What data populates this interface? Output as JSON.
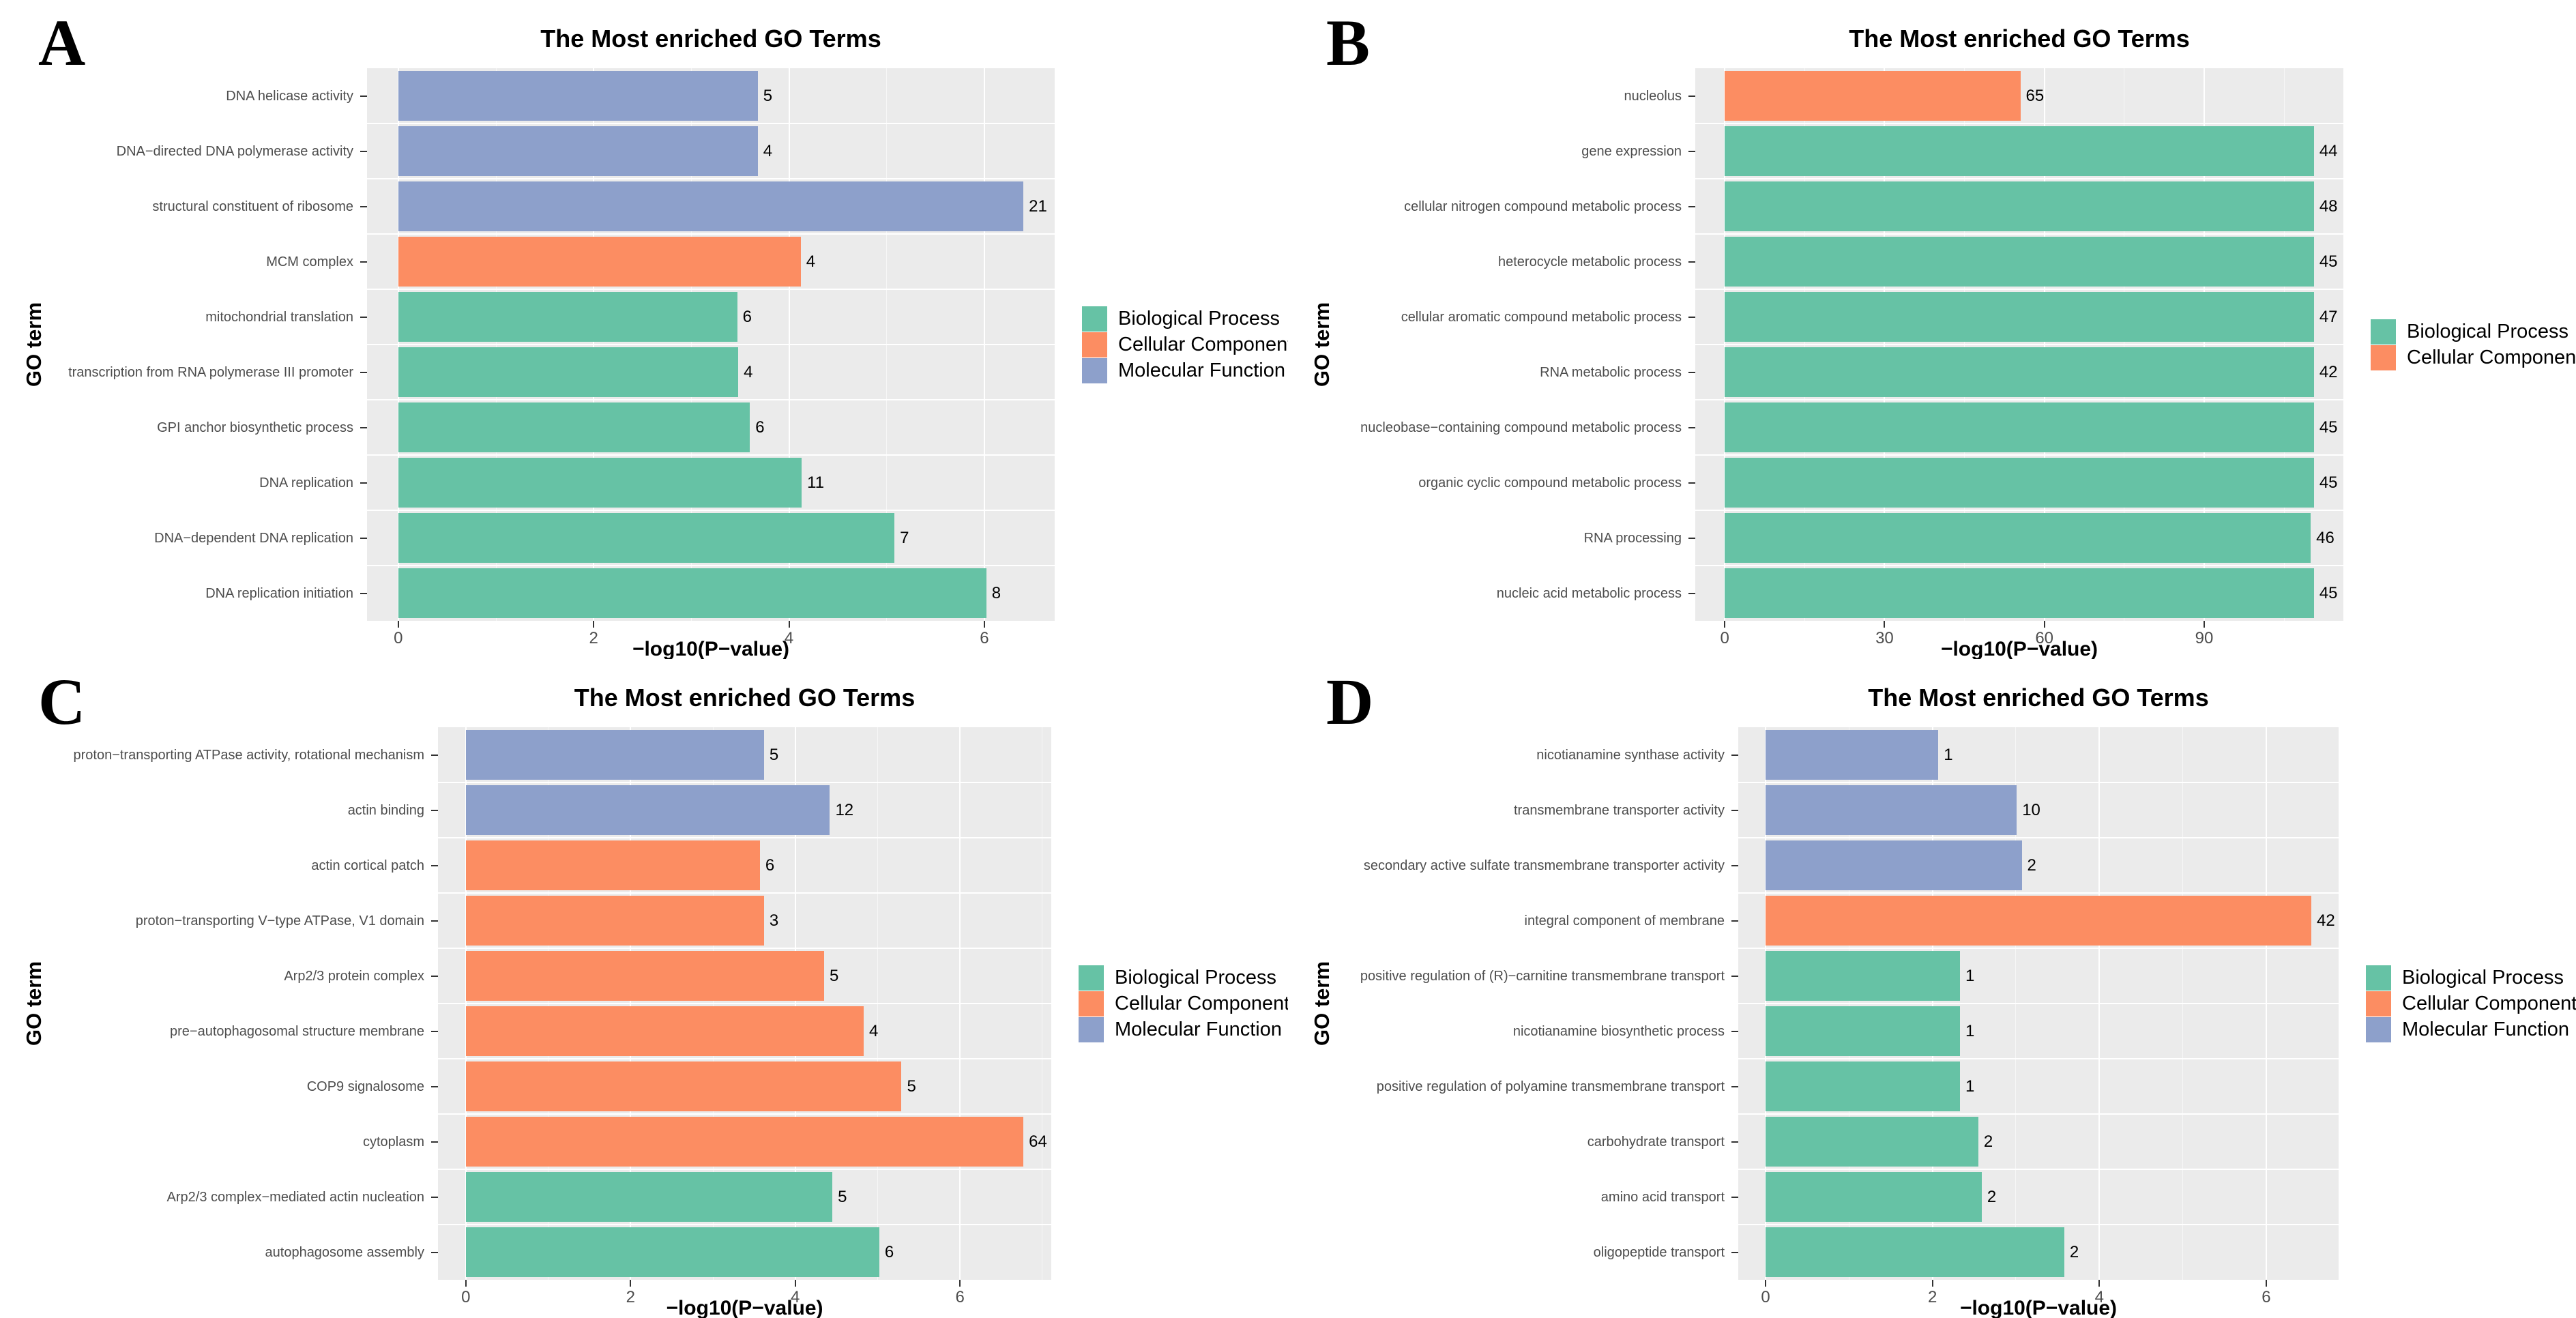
{
  "colors": {
    "Biological Process": "#66C2A5",
    "Cellular Component": "#FC8D62",
    "Molecular Function": "#8DA0CB",
    "panel_bg": "#EBEBEB",
    "grid_major": "#FFFFFF",
    "axis_text": "#4D4D4D",
    "count_text": "#000000",
    "title_text": "#000000"
  },
  "chart_data": [
    {
      "panel_label": "A",
      "type": "bar",
      "orientation": "horizontal",
      "title": "The Most enriched GO Terms",
      "xlabel": "−log10(P−value)",
      "ylabel": "GO term",
      "grid": true,
      "legend_position": "right",
      "legend": [
        "Biological Process",
        "Cellular Component",
        "Molecular Function"
      ],
      "categories": [
        "DNA helicase activity",
        "DNA−directed DNA polymerase activity",
        "structural constituent of ribosome",
        "MCM complex",
        "mitochondrial translation",
        "transcription from RNA polymerase III promoter",
        "GPI anchor biosynthetic process",
        "DNA replication",
        "DNA−dependent DNA replication",
        "DNA replication initiation"
      ],
      "values": [
        3.68,
        3.68,
        6.4,
        4.12,
        3.47,
        3.48,
        3.6,
        4.13,
        5.08,
        6.02
      ],
      "gene_counts": [
        5,
        4,
        21,
        4,
        6,
        4,
        6,
        11,
        7,
        8
      ],
      "groups": [
        "Molecular Function",
        "Molecular Function",
        "Molecular Function",
        "Cellular Component",
        "Biological Process",
        "Biological Process",
        "Biological Process",
        "Biological Process",
        "Biological Process",
        "Biological Process"
      ],
      "xticks": [
        0,
        2,
        4,
        6
      ],
      "xlim": [
        0,
        6.4
      ]
    },
    {
      "panel_label": "B",
      "type": "bar",
      "orientation": "horizontal",
      "title": "The Most enriched GO Terms",
      "xlabel": "−log10(P−value)",
      "ylabel": "GO term",
      "grid": true,
      "legend_position": "right",
      "legend": [
        "Biological Process",
        "Cellular Component"
      ],
      "categories": [
        "nucleolus",
        "gene expression",
        "cellular nitrogen compound metabolic process",
        "heterocycle metabolic process",
        "cellular aromatic compound metabolic process",
        "RNA metabolic process",
        "nucleobase−containing compound metabolic process",
        "organic cyclic compound metabolic process",
        "RNA processing",
        "nucleic acid metabolic process"
      ],
      "values": [
        55.5,
        110.6,
        110.6,
        110.6,
        110.6,
        110.6,
        110.6,
        110.6,
        110.0,
        110.6
      ],
      "gene_counts": [
        65,
        44,
        48,
        45,
        47,
        42,
        45,
        45,
        46,
        45
      ],
      "groups": [
        "Cellular Component",
        "Biological Process",
        "Biological Process",
        "Biological Process",
        "Biological Process",
        "Biological Process",
        "Biological Process",
        "Biological Process",
        "Biological Process",
        "Biological Process"
      ],
      "xticks": [
        0,
        30,
        60,
        90
      ],
      "xlim": [
        0,
        110.6
      ]
    },
    {
      "panel_label": "C",
      "type": "bar",
      "orientation": "horizontal",
      "title": "The Most enriched GO Terms",
      "xlabel": "−log10(P−value)",
      "ylabel": "GO term",
      "grid": true,
      "legend_position": "right",
      "legend": [
        "Biological Process",
        "Cellular Component",
        "Molecular Function"
      ],
      "categories": [
        "proton−transporting ATPase activity, rotational mechanism",
        "actin binding",
        "actin cortical patch",
        "proton−transporting V−type ATPase, V1 domain",
        "Arp2/3 protein complex",
        "pre−autophagosomal structure membrane",
        "COP9 signalosome",
        "cytoplasm",
        "Arp2/3 complex−mediated actin nucleation",
        "autophagosome assembly"
      ],
      "values": [
        3.62,
        4.42,
        3.57,
        3.62,
        4.35,
        4.83,
        5.29,
        6.77,
        4.45,
        5.02
      ],
      "gene_counts": [
        5,
        12,
        6,
        3,
        5,
        4,
        5,
        64,
        5,
        6
      ],
      "groups": [
        "Molecular Function",
        "Molecular Function",
        "Cellular Component",
        "Cellular Component",
        "Cellular Component",
        "Cellular Component",
        "Cellular Component",
        "Cellular Component",
        "Biological Process",
        "Biological Process"
      ],
      "xticks": [
        0,
        2,
        4,
        6
      ],
      "xlim": [
        0,
        6.77
      ]
    },
    {
      "panel_label": "D",
      "type": "bar",
      "orientation": "horizontal",
      "title": "The Most enriched GO Terms",
      "xlabel": "−log10(P−value)",
      "ylabel": "GO term",
      "grid": true,
      "legend_position": "right",
      "legend": [
        "Biological Process",
        "Cellular Component",
        "Molecular Function"
      ],
      "categories": [
        "nicotianamine synthase activity",
        "transmembrane transporter activity",
        "secondary active sulfate transmembrane transporter activity",
        "integral component of membrane",
        "positive regulation of (R)−carnitine transmembrane transport",
        "nicotianamine biosynthetic process",
        "positive regulation of polyamine transmembrane transport",
        "carbohydrate transport",
        "amino acid transport",
        "oligopeptide transport"
      ],
      "values": [
        2.07,
        3.01,
        3.07,
        6.54,
        2.33,
        2.33,
        2.33,
        2.55,
        2.59,
        3.58
      ],
      "gene_counts": [
        1,
        10,
        2,
        42,
        1,
        1,
        1,
        2,
        2,
        2
      ],
      "groups": [
        "Molecular Function",
        "Molecular Function",
        "Molecular Function",
        "Cellular Component",
        "Biological Process",
        "Biological Process",
        "Biological Process",
        "Biological Process",
        "Biological Process",
        "Biological Process"
      ],
      "xticks": [
        0,
        2,
        4,
        6
      ],
      "xlim": [
        0,
        6.54
      ]
    }
  ]
}
